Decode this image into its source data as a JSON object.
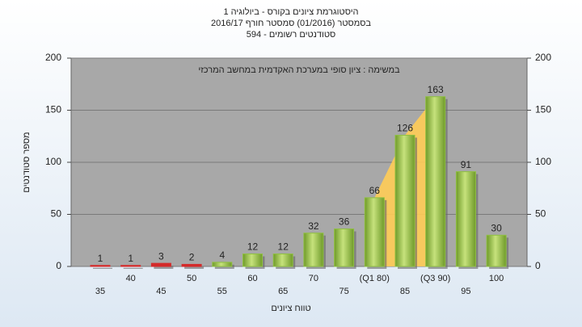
{
  "chart_data": {
    "type": "bar",
    "title": "היסטוגרמת ציונים בקורס - ביולוגיה 1",
    "subtitle": "בסמסטר  (01/2016)  סמסטר חורף 2016/17",
    "subtitle2": "סטודנטים רשומים - 594",
    "annotation": "במשימה : ציון סופי במערכת האקדמית במחשב המרכזי",
    "ylabel": "מספר סטודנטים",
    "xlabel": "טווח ציונים",
    "categories": [
      "35",
      "40",
      "45",
      "50",
      "55",
      "60",
      "65",
      "70",
      "75",
      "(Q1 80)",
      "85",
      "(Q3 90)",
      "95",
      "100"
    ],
    "values": [
      1,
      1,
      3,
      2,
      4,
      12,
      12,
      32,
      36,
      66,
      126,
      163,
      91,
      30
    ],
    "colors": [
      "#d42a2a",
      "#d42a2a",
      "#d42a2a",
      "#d42a2a",
      "#8fc040",
      "#8fc040",
      "#8fc040",
      "#8fc040",
      "#8fc040",
      "#8fc040",
      "#8fc040",
      "#8fc040",
      "#8fc040",
      "#8fc040"
    ],
    "ylim": [
      0,
      200
    ],
    "yticks": [
      0,
      50,
      100,
      150,
      200
    ],
    "y2lim": [
      0,
      200
    ],
    "y2ticks": [
      0,
      50,
      100,
      150,
      200
    ],
    "grid": true
  }
}
